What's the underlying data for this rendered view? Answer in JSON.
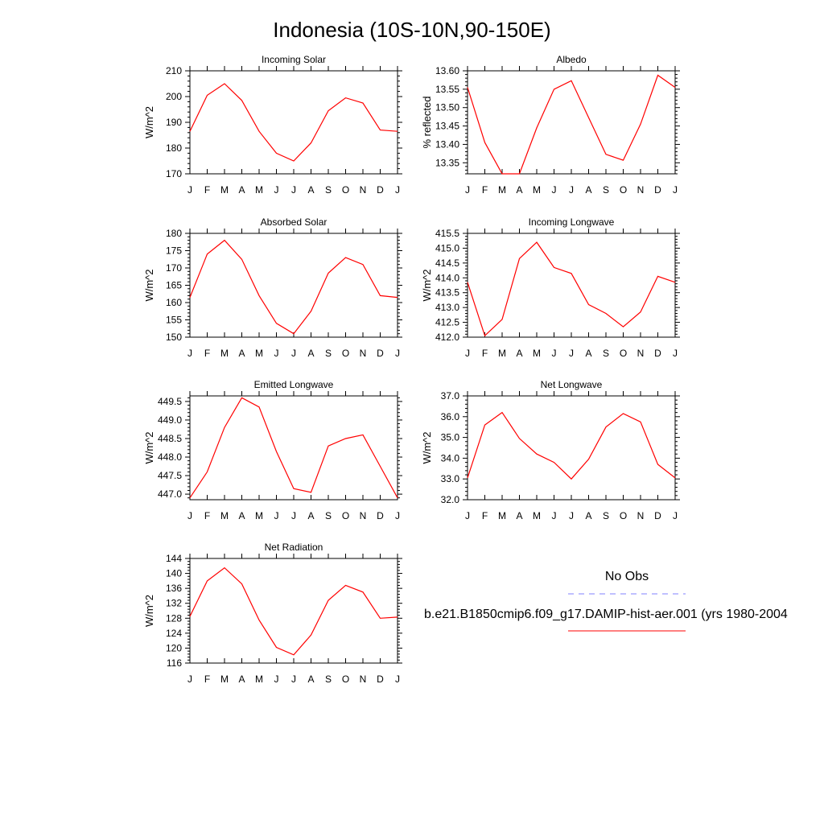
{
  "title": "Indonesia (10S-10N,90-150E)",
  "colors": {
    "model": "#ff0000",
    "obs": "#8080ff",
    "axis": "#000000"
  },
  "legend": {
    "obs_label": "No Obs",
    "model_label": "b.e21.B1850cmip6.f09_g17.DAMIP-hist-aer.001 (yrs 1980-2004"
  },
  "chart_data": [
    {
      "type": "line",
      "title": "Incoming Solar",
      "ylabel": "W/m^2",
      "x": [
        "J",
        "F",
        "M",
        "A",
        "M",
        "J",
        "J",
        "A",
        "S",
        "O",
        "N",
        "D",
        "J"
      ],
      "ylim": [
        170,
        210
      ],
      "yticks": [
        170,
        180,
        190,
        200,
        210
      ],
      "ytick_labels": [
        "170",
        "180",
        "190",
        "200",
        "210"
      ],
      "series": [
        {
          "values": [
            186.5,
            200.5,
            205,
            198.5,
            186.5,
            178,
            175,
            182,
            194.5,
            199.5,
            197.5,
            187,
            186.5
          ]
        }
      ]
    },
    {
      "type": "line",
      "title": "Albedo",
      "ylabel": "% reflected",
      "x": [
        "J",
        "F",
        "M",
        "A",
        "M",
        "J",
        "J",
        "A",
        "S",
        "O",
        "N",
        "D",
        "J"
      ],
      "ylim": [
        13.32,
        13.6
      ],
      "yticks": [
        13.35,
        13.4,
        13.45,
        13.5,
        13.55,
        13.6
      ],
      "ytick_labels": [
        "13.35",
        "13.40",
        "13.45",
        "13.50",
        "13.55",
        "13.60"
      ],
      "series": [
        {
          "values": [
            13.555,
            13.405,
            13.32,
            13.32,
            13.445,
            13.55,
            13.573,
            13.473,
            13.373,
            13.357,
            13.455,
            13.588,
            13.555
          ]
        }
      ]
    },
    {
      "type": "line",
      "title": "Absorbed Solar",
      "ylabel": "W/m^2",
      "x": [
        "J",
        "F",
        "M",
        "A",
        "M",
        "J",
        "J",
        "A",
        "S",
        "O",
        "N",
        "D",
        "J"
      ],
      "ylim": [
        150,
        180
      ],
      "yticks": [
        150,
        155,
        160,
        165,
        170,
        175,
        180
      ],
      "ytick_labels": [
        "150",
        "155",
        "160",
        "165",
        "170",
        "175",
        "180"
      ],
      "series": [
        {
          "values": [
            161.5,
            174,
            178,
            172.5,
            162,
            154,
            151,
            157.5,
            168.5,
            173,
            171,
            162,
            161.5
          ]
        }
      ]
    },
    {
      "type": "line",
      "title": "Incoming Longwave",
      "ylabel": "W/m^2",
      "x": [
        "J",
        "F",
        "M",
        "A",
        "M",
        "J",
        "J",
        "A",
        "S",
        "O",
        "N",
        "D",
        "J"
      ],
      "ylim": [
        412,
        415.5
      ],
      "yticks": [
        412,
        412.5,
        413,
        413.5,
        414,
        414.5,
        415,
        415.5
      ],
      "ytick_labels": [
        "412.0",
        "412.5",
        "413.0",
        "413.5",
        "414.0",
        "414.5",
        "415.0",
        "415.5"
      ],
      "series": [
        {
          "values": [
            413.85,
            412.05,
            412.6,
            414.65,
            415.2,
            414.35,
            414.15,
            413.1,
            412.8,
            412.35,
            412.85,
            414.05,
            413.85
          ]
        }
      ]
    },
    {
      "type": "line",
      "title": "Emitted Longwave",
      "ylabel": "W/m^2",
      "x": [
        "J",
        "F",
        "M",
        "A",
        "M",
        "J",
        "J",
        "A",
        "S",
        "O",
        "N",
        "D",
        "J"
      ],
      "ylim": [
        446.85,
        449.65
      ],
      "yticks": [
        447,
        447.5,
        448,
        448.5,
        449,
        449.5
      ],
      "ytick_labels": [
        "447.0",
        "447.5",
        "448.0",
        "448.5",
        "449.0",
        "449.5"
      ],
      "series": [
        {
          "values": [
            446.9,
            447.6,
            448.8,
            449.6,
            449.35,
            448.15,
            447.15,
            447.05,
            448.3,
            448.5,
            448.6,
            447.75,
            446.9
          ]
        }
      ]
    },
    {
      "type": "line",
      "title": "Net Longwave",
      "ylabel": "W/m^2",
      "x": [
        "J",
        "F",
        "M",
        "A",
        "M",
        "J",
        "J",
        "A",
        "S",
        "O",
        "N",
        "D",
        "J"
      ],
      "ylim": [
        32,
        37
      ],
      "yticks": [
        32,
        33,
        34,
        35,
        36,
        37
      ],
      "ytick_labels": [
        "32.0",
        "33.0",
        "34.0",
        "35.0",
        "36.0",
        "37.0"
      ],
      "series": [
        {
          "values": [
            33.05,
            35.6,
            36.2,
            34.95,
            34.2,
            33.8,
            33.0,
            33.95,
            35.5,
            36.15,
            35.75,
            33.7,
            33.05
          ]
        }
      ]
    },
    {
      "type": "line",
      "title": "Net Radiation",
      "ylabel": "W/m^2",
      "x": [
        "J",
        "F",
        "M",
        "A",
        "M",
        "J",
        "J",
        "A",
        "S",
        "O",
        "N",
        "D",
        "J"
      ],
      "ylim": [
        116,
        144
      ],
      "yticks": [
        116,
        120,
        124,
        128,
        132,
        136,
        140,
        144
      ],
      "ytick_labels": [
        "116",
        "120",
        "124",
        "128",
        "132",
        "136",
        "140",
        "144"
      ],
      "series": [
        {
          "values": [
            128.5,
            138,
            141.5,
            137.2,
            127.5,
            120.2,
            118.2,
            123.5,
            132.8,
            136.8,
            135,
            128,
            128.3
          ]
        }
      ]
    }
  ]
}
